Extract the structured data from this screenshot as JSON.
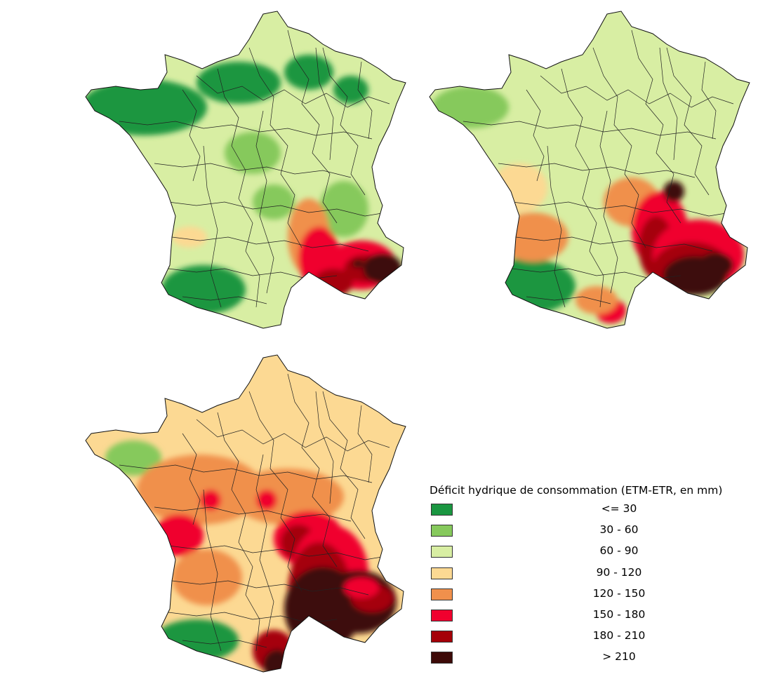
{
  "maps": [
    {
      "id": "top-left",
      "hotspots": "weak",
      "base_class": 2
    },
    {
      "id": "top-right",
      "hotspots": "medium",
      "base_class": 2
    },
    {
      "id": "bottom-left",
      "hotspots": "strong",
      "base_class": 3
    }
  ],
  "legend": {
    "title": "Déficit hydrique de consommation (ETM-ETR, en mm)",
    "classes": [
      {
        "label": "<= 30",
        "color": "#1a9641"
      },
      {
        "label": "30 - 60",
        "color": "#86c95c"
      },
      {
        "label": "60 - 90",
        "color": "#d8eea3"
      },
      {
        "label": "90 - 120",
        "color": "#fcd993"
      },
      {
        "label": "120 - 150",
        "color": "#f0904c"
      },
      {
        "label": "150 - 180",
        "color": "#f0002e"
      },
      {
        "label": "180 - 210",
        "color": "#a50008"
      },
      {
        "label": "> 210",
        "color": "#3d0a08"
      }
    ]
  }
}
